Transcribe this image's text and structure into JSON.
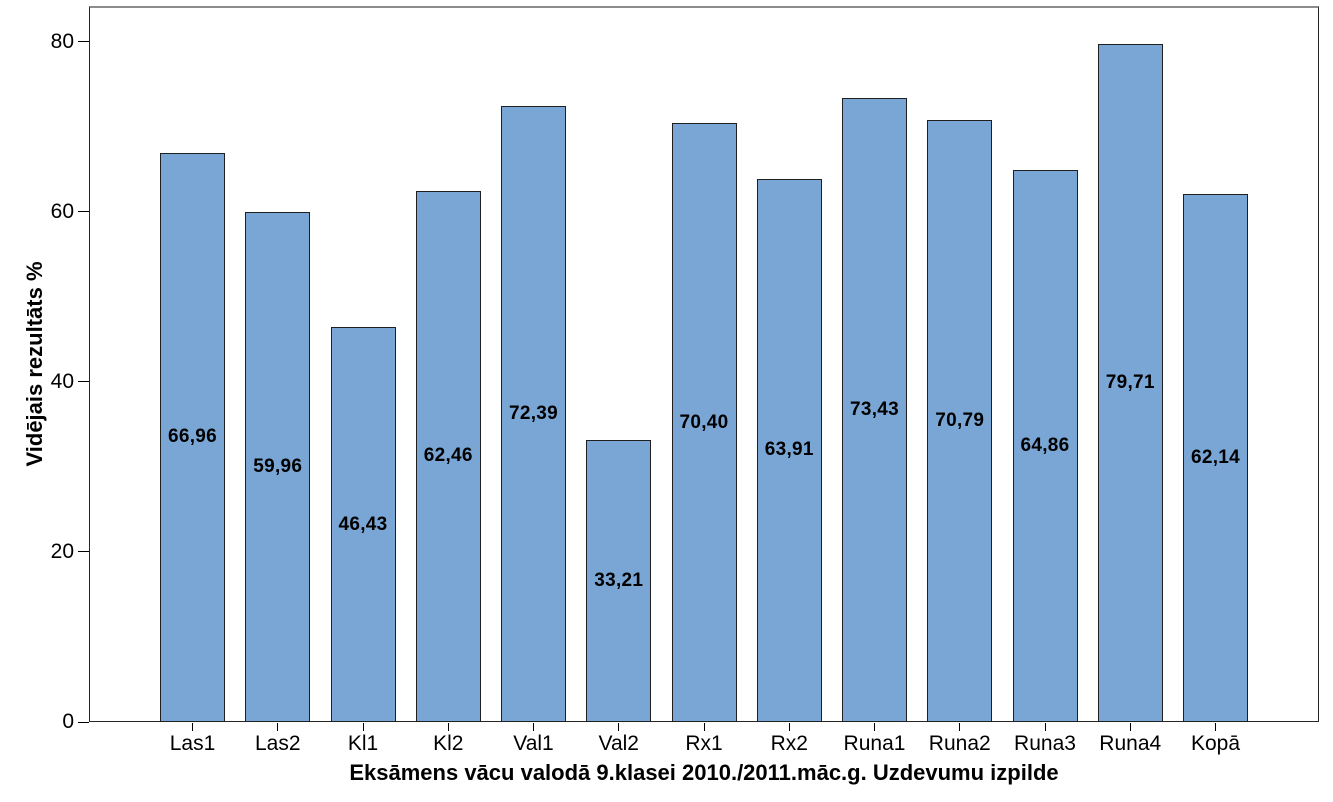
{
  "chart_data": {
    "type": "bar",
    "categories": [
      "Las1",
      "Las2",
      "Kl1",
      "Kl2",
      "Val1",
      "Val2",
      "Rx1",
      "Rx2",
      "Runa1",
      "Runa2",
      "Runa3",
      "Runa4",
      "Kopā"
    ],
    "values": [
      66.96,
      59.96,
      46.43,
      62.46,
      72.39,
      33.21,
      70.4,
      63.91,
      73.43,
      70.79,
      64.86,
      79.71,
      62.14
    ],
    "value_labels": [
      "66,96",
      "59,96",
      "46,43",
      "62,46",
      "72,39",
      "33,21",
      "70,40",
      "63,91",
      "73,43",
      "70,79",
      "64,86",
      "79,71",
      "62,14"
    ],
    "xlabel": "Eksāmens vācu valodā 9.klasei 2010./2011.māc.g. Uzdevumu izpilde",
    "ylabel": "Vidējais rezultāts %",
    "yticks": [
      0,
      20,
      40,
      60,
      80
    ],
    "ylim": [
      0,
      84.2
    ],
    "grid": false,
    "legend": "none",
    "value_label_position": "center-inside",
    "colors": {
      "bar_fill": "#79A6D5",
      "bar_border": "#1f1f1f",
      "frame": "#262626",
      "frame_top": "#8c8c8c",
      "text": "#000000"
    }
  }
}
